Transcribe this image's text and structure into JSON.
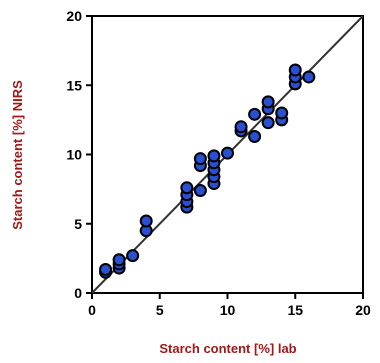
{
  "chart_data": {
    "type": "scatter",
    "title": "",
    "xlabel": "Starch content [%] lab",
    "ylabel": "Starch content [%] NIRS",
    "xlim": [
      0,
      20
    ],
    "ylim": [
      0,
      20
    ],
    "xticks": [
      "0",
      "5",
      "10",
      "15",
      "20"
    ],
    "yticks": [
      "0",
      "5",
      "10",
      "15",
      "20"
    ],
    "grid": false,
    "legend": "none",
    "reference_line": {
      "from": [
        0,
        0
      ],
      "to": [
        20,
        20
      ]
    },
    "series": [
      {
        "points": [
          [
            1.0,
            1.5
          ],
          [
            1.0,
            1.7
          ],
          [
            2.0,
            1.8
          ],
          [
            2.0,
            2.1
          ],
          [
            2.0,
            2.4
          ],
          [
            3.0,
            2.7
          ],
          [
            4.0,
            4.5
          ],
          [
            4.0,
            5.2
          ],
          [
            7.0,
            6.2
          ],
          [
            7.0,
            6.6
          ],
          [
            7.0,
            7.1
          ],
          [
            7.0,
            7.6
          ],
          [
            8.0,
            7.4
          ],
          [
            8.0,
            9.2
          ],
          [
            8.0,
            9.7
          ],
          [
            9.0,
            7.9
          ],
          [
            9.0,
            8.4
          ],
          [
            9.0,
            8.9
          ],
          [
            9.0,
            9.4
          ],
          [
            9.0,
            9.9
          ],
          [
            10.0,
            10.1
          ],
          [
            11.0,
            11.7
          ],
          [
            11.0,
            12.0
          ],
          [
            12.0,
            11.3
          ],
          [
            12.0,
            12.9
          ],
          [
            13.0,
            12.3
          ],
          [
            13.0,
            13.3
          ],
          [
            13.0,
            13.8
          ],
          [
            14.0,
            12.5
          ],
          [
            14.0,
            13.0
          ],
          [
            15.0,
            15.1
          ],
          [
            15.0,
            15.6
          ],
          [
            15.0,
            16.1
          ],
          [
            16.0,
            15.6
          ]
        ]
      }
    ]
  },
  "colors": {
    "marker_fill": "#2850d0",
    "marker_stroke": "#000000",
    "axis_label": "#a01818",
    "axis": "#000000",
    "reference_line": "#333333"
  }
}
